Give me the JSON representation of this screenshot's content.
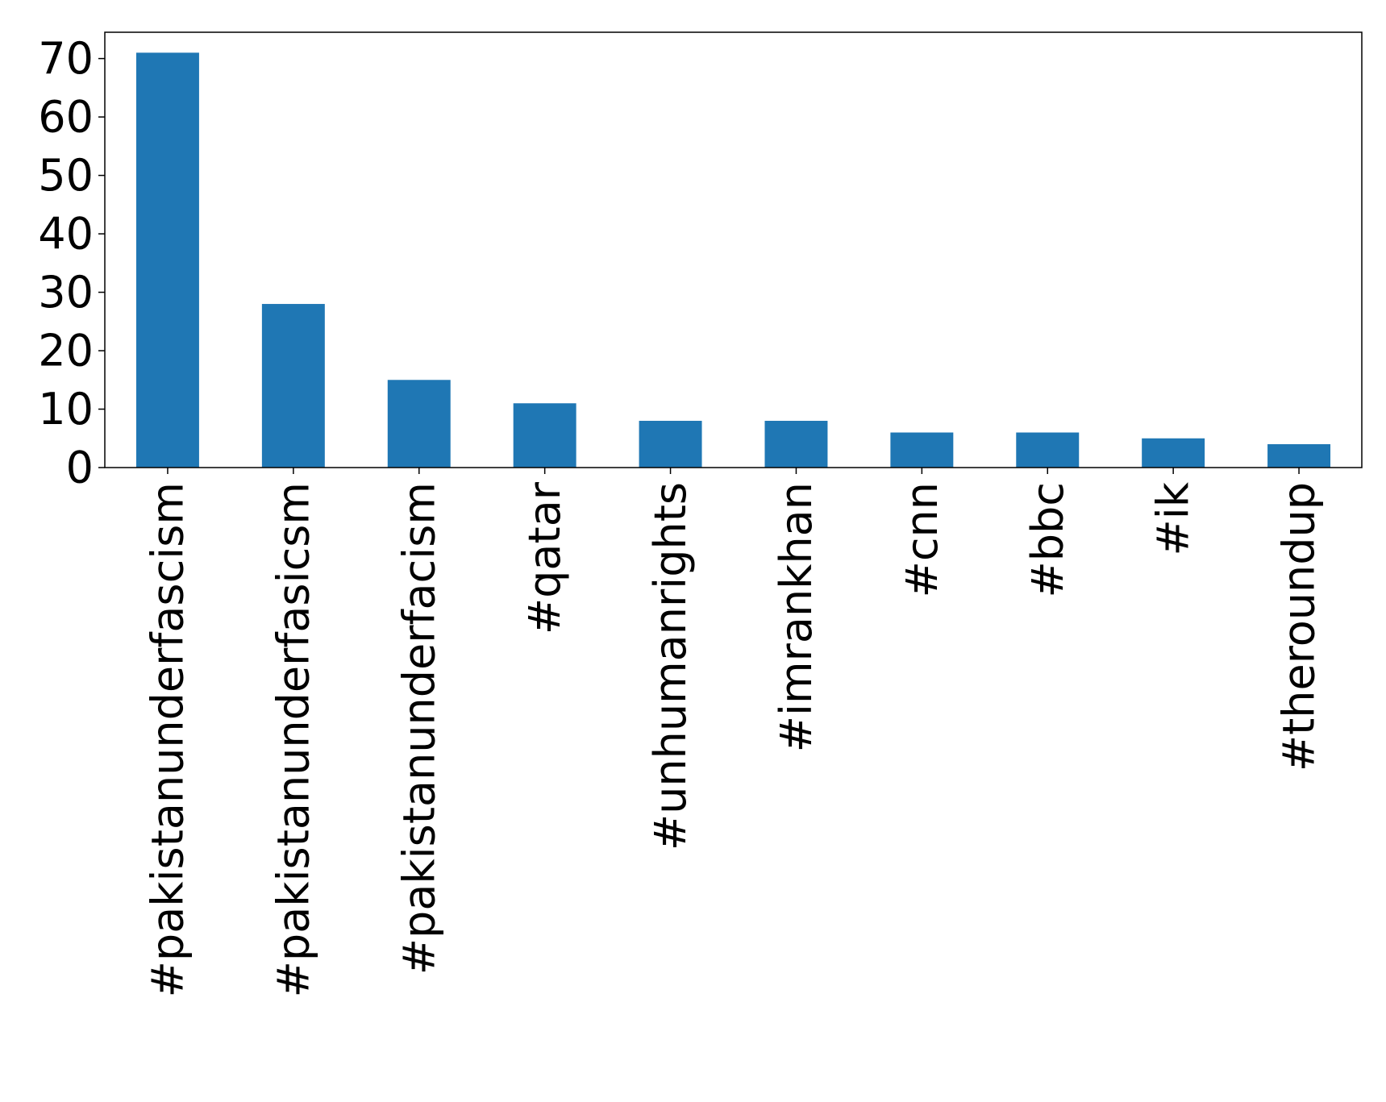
{
  "chart_data": {
    "type": "bar",
    "title": "",
    "xlabel": "",
    "ylabel": "",
    "categories": [
      "#pakistanunderfascism",
      "#pakistanunderfasicsm",
      "#pakistanunderfacism",
      "#qatar",
      "#unhumanrights",
      "#imrankhan",
      "#cnn",
      "#bbc",
      "#ik",
      "#theroundup"
    ],
    "values": [
      71,
      28,
      15,
      11,
      8,
      8,
      6,
      6,
      5,
      4
    ],
    "ylim": [
      0,
      74.5
    ],
    "yticks": [
      0,
      10,
      20,
      30,
      40,
      50,
      60,
      70
    ],
    "grid": false,
    "legend": "none",
    "bar_color": "#1f77b4"
  }
}
